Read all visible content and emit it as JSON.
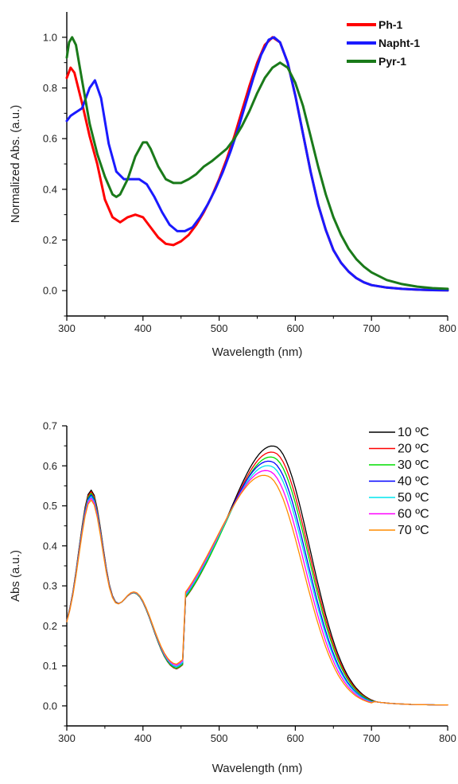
{
  "chart_data": [
    {
      "type": "line",
      "xlabel": "Wavelength (nm)",
      "ylabel": "Normalized Abs. (a.u.)",
      "xlim": [
        300,
        800
      ],
      "ylim": [
        -0.1,
        1.1
      ],
      "xticks": [
        "300",
        "400",
        "500",
        "600",
        "700",
        "800"
      ],
      "yticks": [
        "0.0",
        "0.2",
        "0.4",
        "0.6",
        "0.8",
        "1.0"
      ],
      "grid": false,
      "legend_position": "top-right",
      "series": [
        {
          "name": "Ph-1",
          "color": "#ff0000",
          "points": [
            [
              300,
              0.84
            ],
            [
              305,
              0.88
            ],
            [
              310,
              0.86
            ],
            [
              320,
              0.74
            ],
            [
              330,
              0.61
            ],
            [
              340,
              0.5
            ],
            [
              350,
              0.36
            ],
            [
              360,
              0.29
            ],
            [
              370,
              0.27
            ],
            [
              380,
              0.29
            ],
            [
              390,
              0.3
            ],
            [
              400,
              0.29
            ],
            [
              410,
              0.25
            ],
            [
              420,
              0.21
            ],
            [
              430,
              0.185
            ],
            [
              440,
              0.18
            ],
            [
              450,
              0.195
            ],
            [
              460,
              0.22
            ],
            [
              470,
              0.26
            ],
            [
              480,
              0.31
            ],
            [
              490,
              0.37
            ],
            [
              500,
              0.44
            ],
            [
              510,
              0.52
            ],
            [
              520,
              0.61
            ],
            [
              530,
              0.71
            ],
            [
              540,
              0.81
            ],
            [
              550,
              0.9
            ],
            [
              560,
              0.97
            ],
            [
              570,
              1.0
            ],
            [
              580,
              0.98
            ],
            [
              590,
              0.9
            ],
            [
              600,
              0.77
            ],
            [
              610,
              0.62
            ],
            [
              620,
              0.47
            ],
            [
              630,
              0.34
            ],
            [
              640,
              0.24
            ],
            [
              650,
              0.16
            ],
            [
              660,
              0.11
            ],
            [
              670,
              0.075
            ],
            [
              680,
              0.05
            ],
            [
              690,
              0.033
            ],
            [
              700,
              0.022
            ],
            [
              720,
              0.012
            ],
            [
              740,
              0.007
            ],
            [
              760,
              0.004
            ],
            [
              780,
              0.002
            ],
            [
              800,
              0.001
            ]
          ]
        },
        {
          "name": "Napht-1",
          "color": "#1a1aff",
          "points": [
            [
              300,
              0.67
            ],
            [
              305,
              0.69
            ],
            [
              310,
              0.7
            ],
            [
              320,
              0.72
            ],
            [
              330,
              0.8
            ],
            [
              337,
              0.83
            ],
            [
              345,
              0.76
            ],
            [
              355,
              0.58
            ],
            [
              365,
              0.47
            ],
            [
              375,
              0.44
            ],
            [
              385,
              0.44
            ],
            [
              395,
              0.44
            ],
            [
              405,
              0.42
            ],
            [
              415,
              0.37
            ],
            [
              425,
              0.31
            ],
            [
              435,
              0.26
            ],
            [
              445,
              0.235
            ],
            [
              455,
              0.235
            ],
            [
              465,
              0.25
            ],
            [
              475,
              0.29
            ],
            [
              485,
              0.34
            ],
            [
              495,
              0.4
            ],
            [
              505,
              0.47
            ],
            [
              515,
              0.55
            ],
            [
              525,
              0.64
            ],
            [
              535,
              0.74
            ],
            [
              545,
              0.84
            ],
            [
              555,
              0.93
            ],
            [
              565,
              0.99
            ],
            [
              572,
              1.0
            ],
            [
              580,
              0.98
            ],
            [
              590,
              0.9
            ],
            [
              600,
              0.77
            ],
            [
              610,
              0.62
            ],
            [
              620,
              0.47
            ],
            [
              630,
              0.34
            ],
            [
              640,
              0.24
            ],
            [
              650,
              0.16
            ],
            [
              660,
              0.11
            ],
            [
              670,
              0.075
            ],
            [
              680,
              0.05
            ],
            [
              690,
              0.033
            ],
            [
              700,
              0.022
            ],
            [
              720,
              0.012
            ],
            [
              740,
              0.007
            ],
            [
              760,
              0.004
            ],
            [
              780,
              0.002
            ],
            [
              800,
              0.001
            ]
          ]
        },
        {
          "name": "Pyr-1",
          "color": "#1a7a1a",
          "points": [
            [
              300,
              0.92
            ],
            [
              303,
              0.98
            ],
            [
              307,
              1.0
            ],
            [
              312,
              0.97
            ],
            [
              320,
              0.83
            ],
            [
              330,
              0.66
            ],
            [
              340,
              0.54
            ],
            [
              350,
              0.45
            ],
            [
              360,
              0.38
            ],
            [
              365,
              0.37
            ],
            [
              370,
              0.38
            ],
            [
              380,
              0.44
            ],
            [
              390,
              0.53
            ],
            [
              400,
              0.585
            ],
            [
              405,
              0.585
            ],
            [
              410,
              0.56
            ],
            [
              420,
              0.49
            ],
            [
              430,
              0.44
            ],
            [
              440,
              0.425
            ],
            [
              450,
              0.425
            ],
            [
              460,
              0.44
            ],
            [
              470,
              0.46
            ],
            [
              480,
              0.49
            ],
            [
              490,
              0.51
            ],
            [
              500,
              0.535
            ],
            [
              510,
              0.56
            ],
            [
              520,
              0.6
            ],
            [
              530,
              0.65
            ],
            [
              540,
              0.71
            ],
            [
              550,
              0.78
            ],
            [
              560,
              0.84
            ],
            [
              570,
              0.88
            ],
            [
              580,
              0.9
            ],
            [
              590,
              0.88
            ],
            [
              600,
              0.82
            ],
            [
              610,
              0.73
            ],
            [
              620,
              0.61
            ],
            [
              630,
              0.49
            ],
            [
              640,
              0.38
            ],
            [
              650,
              0.29
            ],
            [
              660,
              0.22
            ],
            [
              670,
              0.165
            ],
            [
              680,
              0.125
            ],
            [
              690,
              0.095
            ],
            [
              700,
              0.072
            ],
            [
              720,
              0.042
            ],
            [
              740,
              0.026
            ],
            [
              760,
              0.016
            ],
            [
              780,
              0.01
            ],
            [
              800,
              0.007
            ]
          ]
        }
      ]
    },
    {
      "type": "line",
      "xlabel": "Wavelength (nm)",
      "ylabel": "Abs (a.u.)",
      "xlim": [
        300,
        800
      ],
      "ylim": [
        -0.05,
        0.7
      ],
      "xticks": [
        "300",
        "400",
        "500",
        "600",
        "700",
        "800"
      ],
      "yticks": [
        "0.0",
        "0.1",
        "0.2",
        "0.3",
        "0.4",
        "0.5",
        "0.6",
        "0.7"
      ],
      "grid": false,
      "legend_position": "top-right",
      "series": [
        {
          "name": "10 ºC",
          "color": "#000000",
          "peak_uv": 0.488,
          "peak_vis": 0.633,
          "lambda_max": 574
        },
        {
          "name": "20 ºC",
          "color": "#ff0000",
          "peak_uv": 0.484,
          "peak_vis": 0.617,
          "lambda_max": 573
        },
        {
          "name": "30 ºC",
          "color": "#00dd00",
          "peak_uv": 0.48,
          "peak_vis": 0.604,
          "lambda_max": 572
        },
        {
          "name": "40 ºC",
          "color": "#0000ff",
          "peak_uv": 0.476,
          "peak_vis": 0.592,
          "lambda_max": 570
        },
        {
          "name": "50 ºC",
          "color": "#00e5ee",
          "peak_uv": 0.472,
          "peak_vis": 0.58,
          "lambda_max": 569
        },
        {
          "name": "60 ºC",
          "color": "#ff00ff",
          "peak_uv": 0.468,
          "peak_vis": 0.566,
          "lambda_max": 567
        },
        {
          "name": "70 ºC",
          "color": "#ff8c00",
          "peak_uv": 0.463,
          "peak_vis": 0.552,
          "lambda_max": 565
        }
      ]
    }
  ]
}
